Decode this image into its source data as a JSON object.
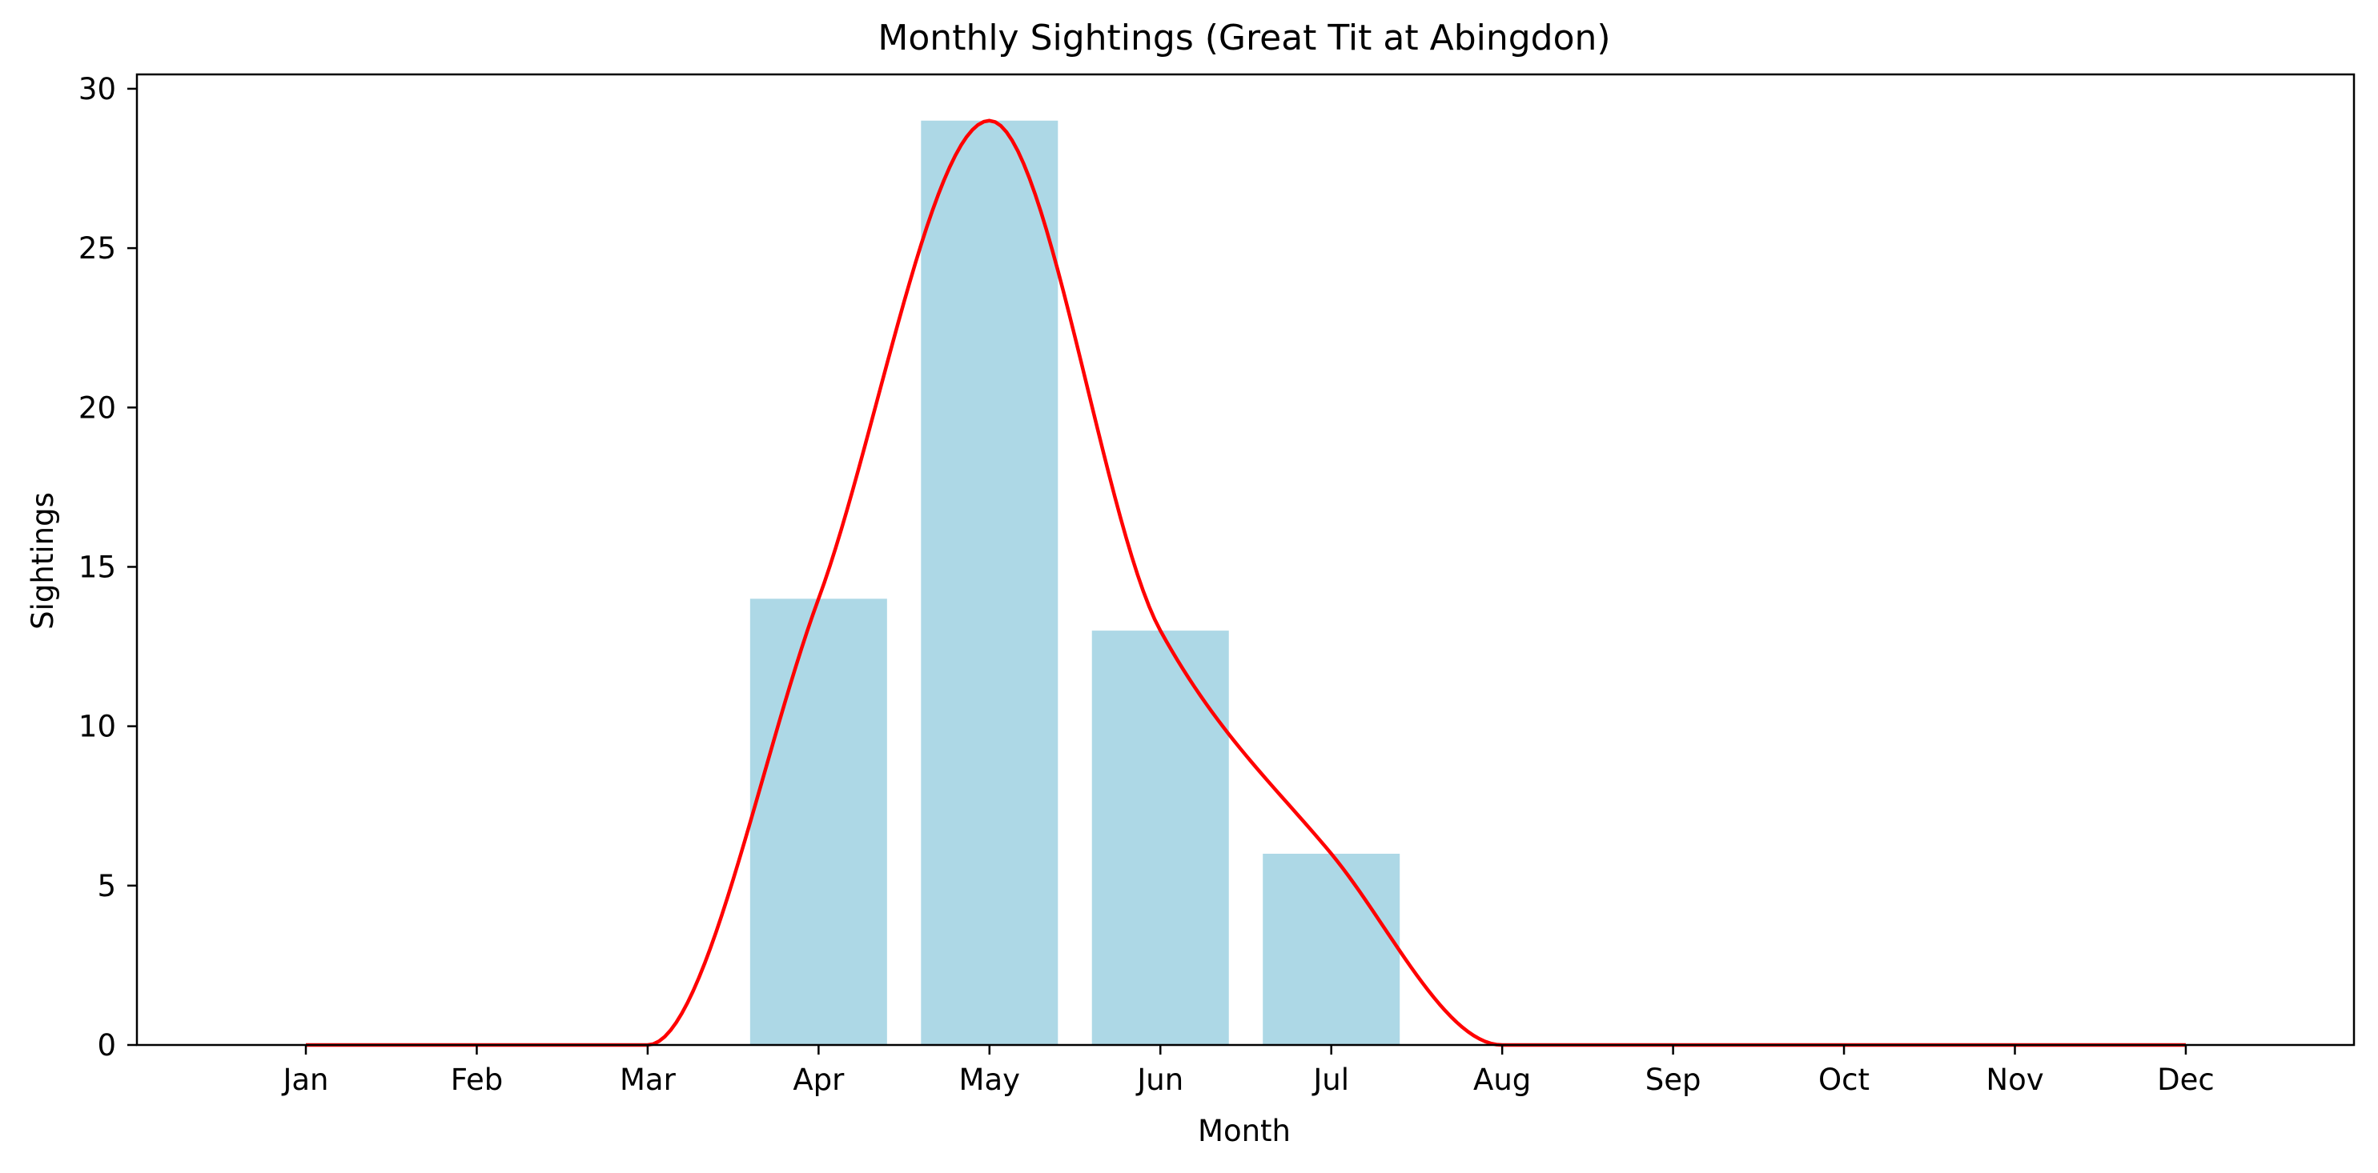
{
  "chart_data": {
    "type": "bar",
    "title": "Monthly Sightings (Great Tit at Abingdon)",
    "xlabel": "Month",
    "ylabel": "Sightings",
    "categories": [
      "Jan",
      "Feb",
      "Mar",
      "Apr",
      "May",
      "Jun",
      "Jul",
      "Aug",
      "Sep",
      "Oct",
      "Nov",
      "Dec"
    ],
    "series": [
      {
        "type": "bar",
        "values": [
          0,
          0,
          0,
          14,
          29,
          13,
          6,
          0,
          0,
          0,
          0,
          0
        ],
        "color": "#add8e6"
      },
      {
        "type": "line",
        "smoothed": true,
        "values": [
          0,
          0,
          0,
          14,
          29,
          13,
          6,
          0,
          0,
          0,
          0,
          0
        ],
        "color": "#ff0000"
      }
    ],
    "ylim": [
      0,
      30.45
    ],
    "yticks": [
      0,
      5,
      10,
      15,
      20,
      25,
      30
    ],
    "grid": false,
    "legend": "none"
  }
}
